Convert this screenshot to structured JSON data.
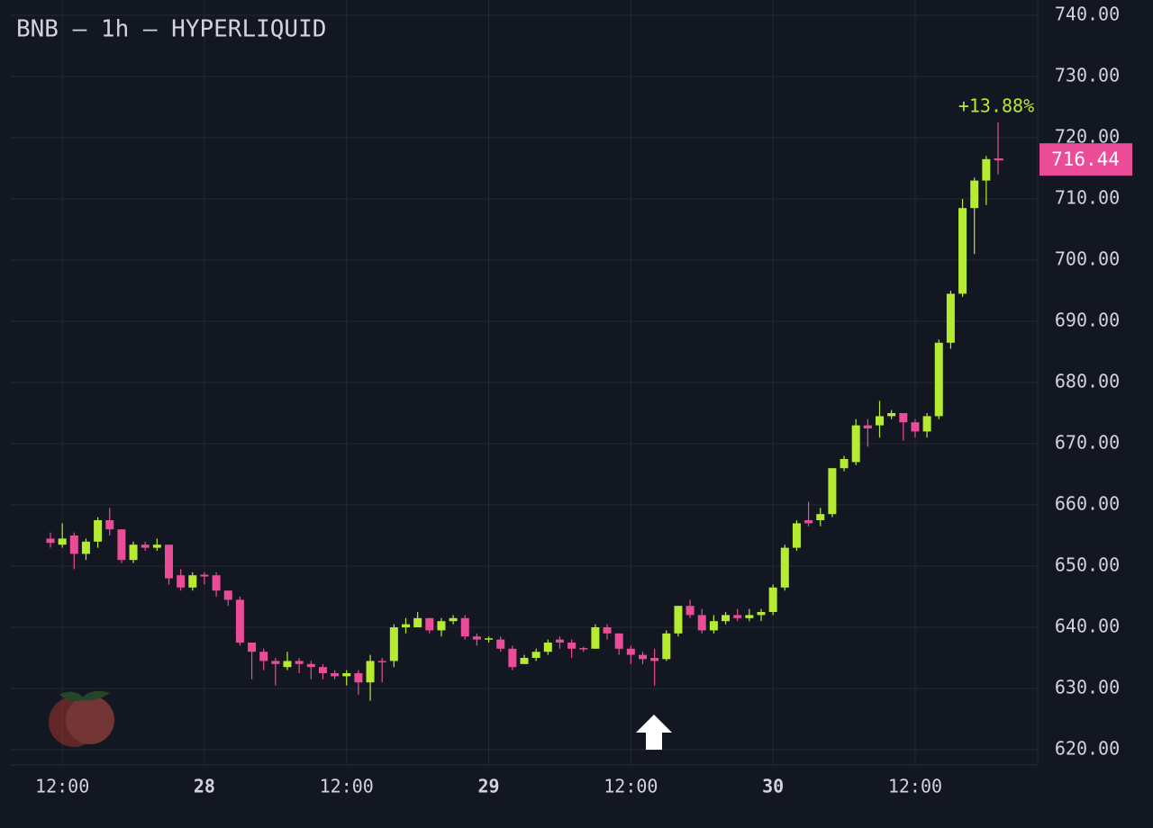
{
  "chart_data": {
    "type": "candlestick",
    "title": "BNB — 1h — HYPERLIQUID",
    "annotation": "+13.88%",
    "up_color": "#b5ec31",
    "down_color": "#ea4c98",
    "grid": true,
    "categories": [
      null,
      "12:00",
      null,
      null,
      null,
      null,
      null,
      null,
      null,
      null,
      null,
      null,
      null,
      "28",
      null,
      null,
      null,
      null,
      null,
      null,
      null,
      null,
      null,
      null,
      null,
      "12:00",
      null,
      null,
      null,
      null,
      null,
      null,
      null,
      null,
      null,
      null,
      null,
      "29",
      null,
      null,
      null,
      null,
      null,
      null,
      null,
      null,
      null,
      null,
      null,
      "12:00",
      null,
      null,
      null,
      null,
      null,
      null,
      null,
      null,
      null,
      null,
      null,
      "30",
      null,
      null,
      null,
      null,
      null,
      null,
      null,
      null,
      null,
      null,
      null,
      "12:00",
      null,
      null,
      null,
      null,
      null,
      null,
      null
    ],
    "open": [
      654.5,
      653.5,
      655,
      652,
      654,
      657.5,
      656,
      651,
      653.5,
      653,
      653.5,
      648.5,
      646.5,
      648.6,
      648.5,
      646,
      644.5,
      637.5,
      636,
      634.5,
      633.5,
      634.5,
      634,
      633.5,
      632.5,
      632,
      632.5,
      631,
      634.5,
      634.5,
      640,
      640,
      641.5,
      639.5,
      641,
      641.5,
      638.5,
      638,
      638,
      636.5,
      634,
      635,
      636,
      638,
      637.5,
      636.6,
      636.5,
      640,
      639,
      636.5,
      635.5,
      635,
      634.8,
      639,
      643.5,
      642,
      639.5,
      641,
      642,
      641.5,
      642,
      642.5,
      646.5,
      653,
      657.5,
      657.5,
      658.5,
      666,
      667,
      673,
      673,
      674.5,
      675,
      673.5,
      672,
      674.5,
      686.5,
      694.5,
      708.5,
      713,
      716.6
    ],
    "high": [
      655.5,
      657,
      655.5,
      654.5,
      658,
      659.5,
      656,
      654,
      654,
      654.5,
      653.5,
      649.5,
      649,
      649,
      649,
      646,
      645,
      637.5,
      636.5,
      635,
      636,
      635,
      634.5,
      634,
      633,
      633,
      633,
      635.5,
      635,
      640.5,
      641.5,
      642.5,
      641.5,
      641.5,
      642,
      642,
      639,
      638.5,
      638.5,
      637,
      635.5,
      636.5,
      638,
      638.5,
      638,
      636.8,
      640.5,
      640.5,
      639,
      637,
      636,
      636.5,
      639.5,
      643.5,
      644.5,
      643,
      642,
      642.5,
      643,
      643,
      643,
      647,
      653.5,
      657.5,
      660.5,
      659.5,
      666,
      668,
      674,
      674,
      677,
      675.5,
      675,
      674,
      675,
      687,
      695,
      710,
      713.5,
      717,
      722.5
    ],
    "low": [
      653,
      653,
      649.5,
      651,
      653,
      655,
      650.5,
      650.5,
      652.5,
      652.5,
      647,
      646,
      646,
      647,
      645,
      643.5,
      637,
      631.5,
      633,
      630.5,
      633,
      632.5,
      631.5,
      631.5,
      631.5,
      630.5,
      629,
      628,
      631,
      633.5,
      639,
      640,
      639,
      638.5,
      640.5,
      638,
      637,
      637.5,
      636,
      633,
      634,
      634.5,
      635.5,
      636.5,
      635,
      636,
      636.5,
      638,
      635.5,
      634,
      634,
      630.5,
      634.5,
      638.5,
      641.5,
      639,
      639,
      640.5,
      641,
      641,
      641,
      642,
      646,
      652.5,
      656.5,
      656.5,
      658,
      665.5,
      666.5,
      669.5,
      671,
      674,
      670.5,
      671,
      671,
      674,
      685.5,
      694,
      701,
      709,
      714
    ],
    "close": [
      653.8,
      654.5,
      652,
      654,
      657.5,
      656,
      651,
      653.5,
      653,
      653.5,
      648,
      646.5,
      648.5,
      648.3,
      646,
      644.5,
      637.5,
      636,
      634.5,
      634,
      634.5,
      634,
      633.5,
      632.5,
      632,
      632.5,
      631,
      634.5,
      634.4,
      640,
      640.5,
      641.5,
      639.5,
      641,
      641.5,
      638.5,
      638,
      638.2,
      636.5,
      633.5,
      635,
      636,
      637.5,
      637.5,
      636.5,
      636.4,
      640,
      639,
      636.5,
      635.5,
      634.8,
      634.5,
      639,
      643.5,
      642,
      639.5,
      641,
      642,
      641.5,
      642,
      642.5,
      646.5,
      653,
      657,
      657,
      658.5,
      666,
      667.5,
      673,
      672.5,
      674.5,
      675,
      673.5,
      672,
      674.5,
      686.5,
      694.5,
      708.5,
      713,
      716.5,
      716.44
    ],
    "ylim": [
      617.5,
      742.5
    ],
    "yticks": [
      {
        "value": 620,
        "label": "620.00"
      },
      {
        "value": 630,
        "label": "630.00"
      },
      {
        "value": 640,
        "label": "640.00"
      },
      {
        "value": 650,
        "label": "650.00"
      },
      {
        "value": 660,
        "label": "660.00"
      },
      {
        "value": 670,
        "label": "670.00"
      },
      {
        "value": 680,
        "label": "680.00"
      },
      {
        "value": 690,
        "label": "690.00"
      },
      {
        "value": 700,
        "label": "700.00"
      },
      {
        "value": 710,
        "label": "710.00"
      },
      {
        "value": 720,
        "label": "720.00"
      },
      {
        "value": 730,
        "label": "730.00"
      },
      {
        "value": 740,
        "label": "740.00"
      }
    ]
  }
}
